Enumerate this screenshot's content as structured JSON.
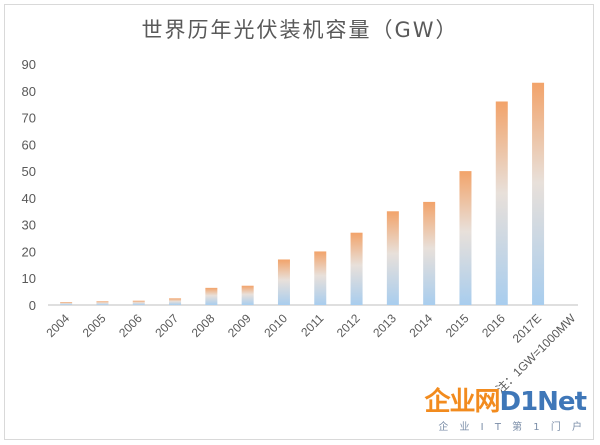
{
  "chart_data": {
    "type": "bar",
    "title": "世界历年光伏装机容量（GW）",
    "xlabel": "",
    "ylabel": "",
    "categories": [
      "2004",
      "2005",
      "2006",
      "2007",
      "2008",
      "2009",
      "2010",
      "2011",
      "2012",
      "2013",
      "2014",
      "2015",
      "2016",
      "2017E"
    ],
    "values": [
      1.1,
      1.4,
      1.6,
      2.5,
      6.4,
      7.2,
      17,
      20,
      27,
      35,
      38.5,
      50,
      76,
      83
    ],
    "ylim": [
      0,
      90
    ],
    "yticks": [
      0,
      10,
      20,
      30,
      40,
      50,
      60,
      70,
      80,
      90
    ],
    "grid": false,
    "legend": "none",
    "colors": {
      "bar_bottom": "#a8cdee",
      "bar_mid": "#e8e0da",
      "bar_top": "#f2a36a",
      "axis": "#bfbfbf",
      "text": "#595959"
    },
    "annotation": "注：1GW=1000MW"
  },
  "watermark": {
    "logo_part1": "企业网",
    "logo_part2": "D1Net",
    "subtitle": "企 业 I T 第 1 门 户"
  }
}
